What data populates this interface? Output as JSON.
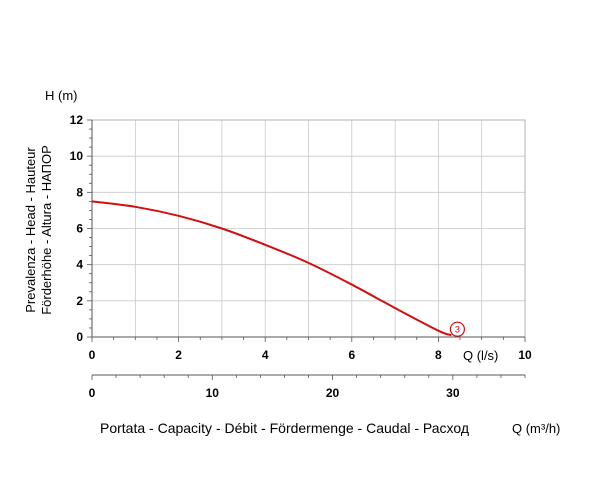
{
  "chart_data": {
    "type": "line",
    "y_unit_label": "H (m)",
    "ylabel_lines": [
      "Prevalenza - Head - Hauteur",
      "Förderhöhe - Altura - НАПОР"
    ],
    "ylim": [
      0,
      12
    ],
    "yticks": [
      0,
      2,
      4,
      6,
      8,
      10,
      12
    ],
    "x_primary": {
      "unit_label": "Q (l/s)",
      "range": [
        0,
        10
      ],
      "ticks": [
        0,
        2,
        4,
        6,
        8,
        10
      ]
    },
    "x_secondary": {
      "unit_label": "Q (m³/h)",
      "title": "Portata - Capacity - Débit - Fördermenge - Caudal - Расход",
      "ticks": [
        0,
        10,
        20,
        30
      ]
    },
    "grid": true,
    "series": [
      {
        "name": "3",
        "color": "#d01010",
        "x": [
          0,
          1,
          2,
          3,
          4,
          5,
          6,
          7,
          8,
          8.3
        ],
        "y": [
          7.5,
          7.2,
          6.7,
          6.0,
          5.1,
          4.1,
          2.9,
          1.6,
          0.35,
          0.1
        ]
      }
    ]
  }
}
